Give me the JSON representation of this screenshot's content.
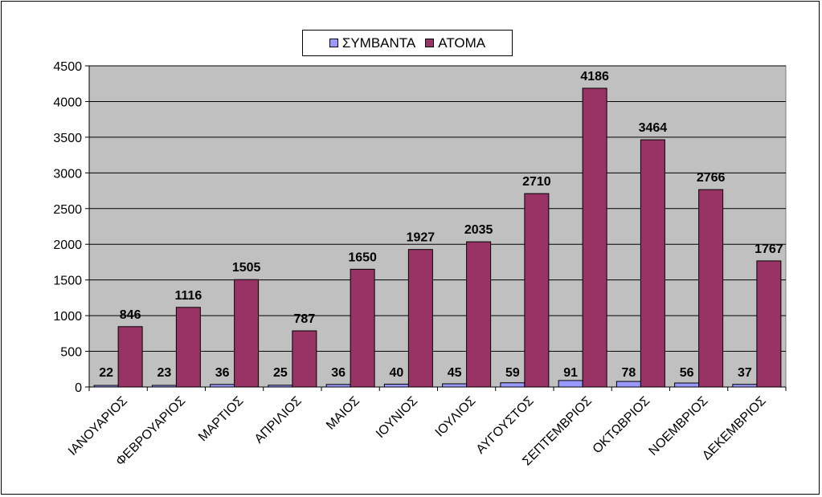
{
  "chart_data": {
    "type": "bar",
    "title": "",
    "xlabel": "",
    "ylabel": "",
    "ylim": [
      0,
      4500
    ],
    "yticks": [
      0,
      500,
      1000,
      1500,
      2000,
      2500,
      3000,
      3500,
      4000,
      4500
    ],
    "grid": true,
    "legend_position": "top-center",
    "categories": [
      "ΙΑΝΟΥΑΡΙΟΣ",
      "ΦΕΒΡΟΥΑΡΙΟΣ",
      "ΜΑΡΤΙΟΣ",
      "ΑΠΡΙΛΙΟΣ",
      "ΜΑΙΟΣ",
      "ΙΟΥΝΙΟΣ",
      "ΙΟΥΛΙΟΣ",
      "ΑΥΓΟΥΣΤΟΣ",
      "ΣΕΠΤΕΜΒΡΙΟΣ",
      "ΟΚΤΩΒΡΙΟΣ",
      "ΝΟΕΜΒΡΙΟΣ",
      "ΔΕΚΕΜΒΡΙΟΣ"
    ],
    "series": [
      {
        "name": "ΣΥΜΒΑΝΤΑ",
        "color": "#9999ff",
        "values": [
          22,
          23,
          36,
          25,
          36,
          40,
          45,
          59,
          91,
          78,
          56,
          37
        ]
      },
      {
        "name": "ΑΤΟΜΑ",
        "color": "#993366",
        "values": [
          846,
          1116,
          1505,
          787,
          1650,
          1927,
          2035,
          2710,
          4186,
          3464,
          2766,
          1767
        ]
      }
    ]
  },
  "colors": {
    "plot_bg": "#c0c0c0",
    "gridline": "#000000"
  }
}
